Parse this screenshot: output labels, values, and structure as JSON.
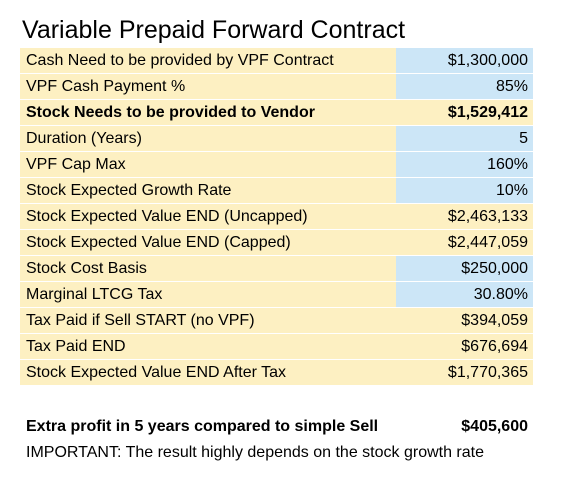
{
  "title": "Variable Prepaid Forward Contract",
  "colors": {
    "label_bg": "#fdf0c2",
    "input_bg": "#cce6f7",
    "calc_bg": "#fdf0c2"
  },
  "rows": [
    {
      "label": "Cash Need to be provided by VPF Contract",
      "value": "$1,300,000",
      "input": true,
      "bold": false
    },
    {
      "label": "VPF Cash Payment %",
      "value": "85%",
      "input": true,
      "bold": false
    },
    {
      "label": "Stock Needs to be provided to Vendor",
      "value": "$1,529,412",
      "input": false,
      "bold": true
    },
    {
      "label": "Duration (Years)",
      "value": "5",
      "input": true,
      "bold": false
    },
    {
      "label": "VPF Cap Max",
      "value": "160%",
      "input": true,
      "bold": false
    },
    {
      "label": "Stock Expected Growth Rate",
      "value": "10%",
      "input": true,
      "bold": false
    },
    {
      "label": "Stock Expected Value END (Uncapped)",
      "value": "$2,463,133",
      "input": false,
      "bold": false
    },
    {
      "label": "Stock Expected Value END (Capped)",
      "value": "$2,447,059",
      "input": false,
      "bold": false
    },
    {
      "label": "Stock Cost Basis",
      "value": "$250,000",
      "input": true,
      "bold": false
    },
    {
      "label": "Marginal LTCG Tax",
      "value": "30.80%",
      "input": true,
      "bold": false
    },
    {
      "label": "Tax Paid if Sell START (no VPF)",
      "value": "$394,059",
      "input": false,
      "bold": false
    },
    {
      "label": "Tax Paid END",
      "value": "$676,694",
      "input": false,
      "bold": false
    },
    {
      "label": "Stock Expected Value END After Tax",
      "value": "$1,770,365",
      "input": false,
      "bold": false
    }
  ],
  "summary": {
    "label": "Extra profit in 5 years compared to simple Sell",
    "value": "$405,600"
  },
  "note": "IMPORTANT: The result highly depends on the stock growth rate"
}
